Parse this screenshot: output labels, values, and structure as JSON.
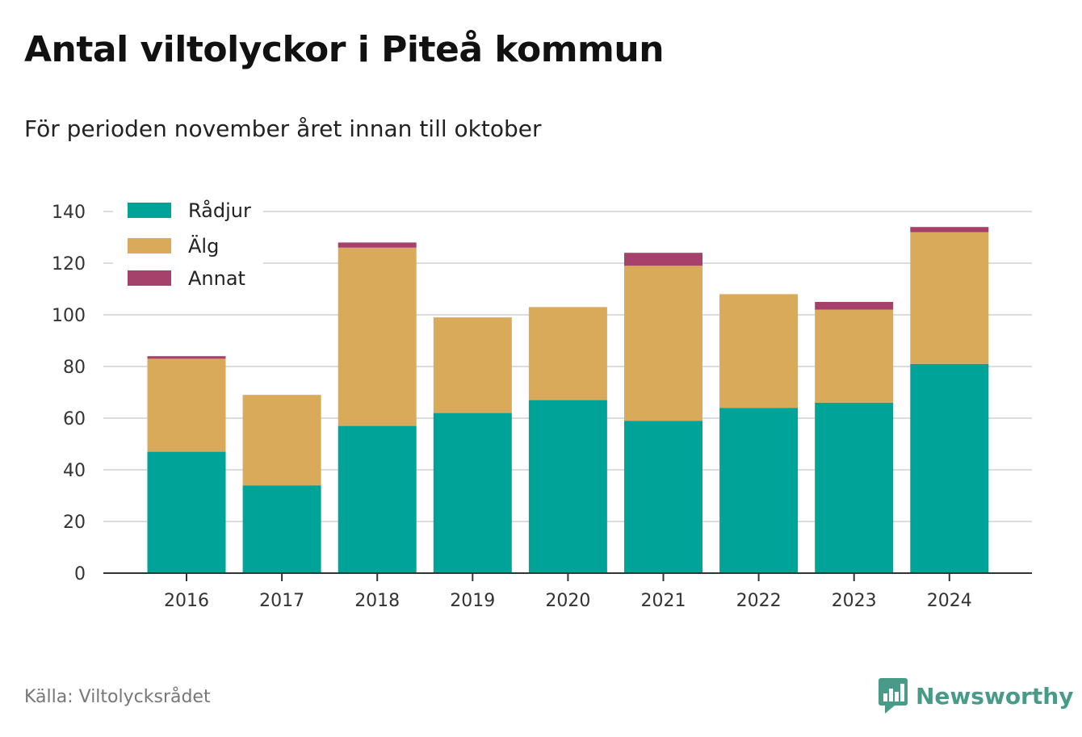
{
  "header": {
    "title": "Antal viltolyckor i Piteå kommun",
    "subtitle": "För perioden november året innan till oktober"
  },
  "footer": {
    "source": "Källa: Viltolycksrådet",
    "brand": "Newsworthy",
    "brand_icon": "bar-chart-speech-icon"
  },
  "colors": {
    "radjur": "#00a398",
    "alg": "#d9aa5a",
    "annat": "#a5416b",
    "grid": "#dcdcdc",
    "axis": "#333333",
    "brand": "#4a9a89"
  },
  "chart_data": {
    "type": "bar",
    "stacked": true,
    "categories": [
      "2016",
      "2017",
      "2018",
      "2019",
      "2020",
      "2021",
      "2022",
      "2023",
      "2024"
    ],
    "series": [
      {
        "name": "Rådjur",
        "values": [
          47,
          34,
          57,
          62,
          67,
          59,
          64,
          66,
          81
        ]
      },
      {
        "name": "Älg",
        "values": [
          36,
          35,
          69,
          37,
          36,
          60,
          44,
          36,
          51
        ]
      },
      {
        "name": "Annat",
        "values": [
          1,
          0,
          2,
          0,
          0,
          5,
          0,
          3,
          2
        ]
      }
    ],
    "ylim": [
      0,
      140
    ],
    "yticks": [
      "0",
      "20",
      "40",
      "60",
      "80",
      "100",
      "120",
      "140"
    ],
    "grid": true,
    "legend": "top-left"
  }
}
